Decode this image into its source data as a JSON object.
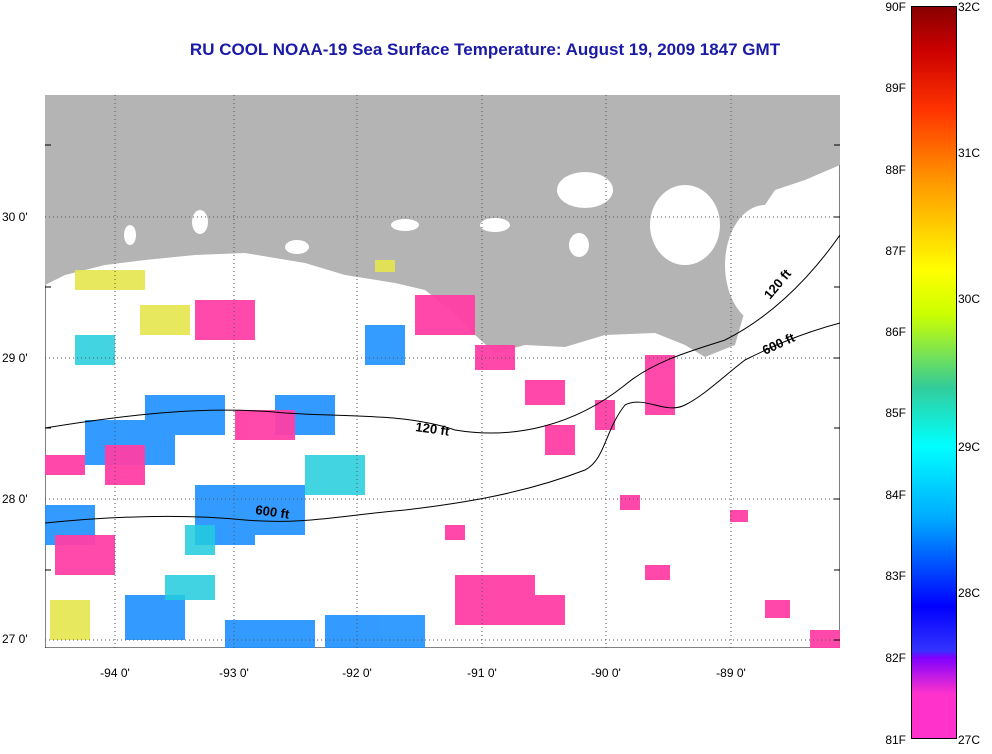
{
  "title": "RU COOL  NOAA-19  Sea Surface Temperature:  August 19, 2009 1847 GMT",
  "lat_labels": [
    "30 0'",
    "29 0'",
    "28 0'",
    "27 0'"
  ],
  "lon_labels": [
    "-94 0'",
    "-93 0'",
    "-92 0'",
    "-91 0'",
    "-90 0'",
    "-89 0'"
  ],
  "contour_labels": [
    "120 ft",
    "600 ft",
    "120 ft",
    "600 ft"
  ],
  "colorbar": {
    "fahrenheit": [
      "90F",
      "89F",
      "88F",
      "87F",
      "86F",
      "85F",
      "84F",
      "83F",
      "82F",
      "81F"
    ],
    "celsius": [
      "32C",
      "31C",
      "30C",
      "29C",
      "28C",
      "27C"
    ]
  },
  "colors": {
    "land": "#b4b4b4",
    "title": "#1a1aa6",
    "warm": "#ff33aa",
    "cool": "#2288ff"
  }
}
